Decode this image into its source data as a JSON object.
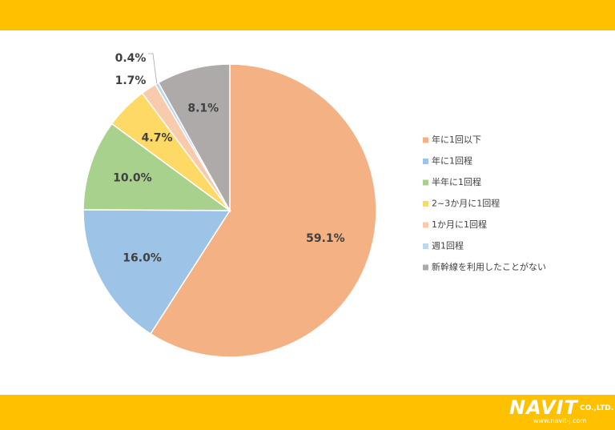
{
  "chart_data": {
    "type": "pie",
    "categories": [
      "年に1回以下",
      "年に1回程",
      "半年に1回程",
      "2~3か月に1回程",
      "1か月に1回程",
      "週1回程",
      "新幹線を利用したことがない"
    ],
    "values": [
      59.1,
      16.0,
      10.0,
      4.7,
      1.7,
      0.4,
      8.1
    ],
    "value_labels": [
      "59.1%",
      "16.0%",
      "10.0%",
      "4.7%",
      "1.7%",
      "0.4%",
      "8.1%"
    ],
    "colors": [
      "#f4b183",
      "#9dc3e6",
      "#a9d18e",
      "#ffd966",
      "#f8cbad",
      "#bdd7ee",
      "#aeaaaa"
    ],
    "start_angle_deg": 0,
    "direction": "clockwise",
    "legend_position": "right"
  },
  "branding": {
    "band_color": "#ffc000",
    "logo_word": "NAVIT",
    "logo_company": "CO.,LTD.",
    "logo_url": "www.navit-j.com"
  }
}
